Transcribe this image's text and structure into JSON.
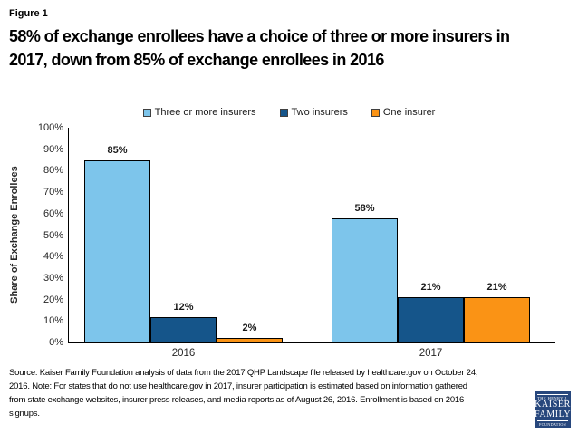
{
  "figure_label": "Figure 1",
  "title": "58% of exchange enrollees have a choice of three or more insurers in\n2017, down from 85% of exchange enrollees in 2016",
  "source_note": "Source: Kaiser Family Foundation analysis of data from the 2017 QHP Landscape file released by healthcare.gov on October 24,\n2016. Note: For states that do not use healthcare.gov in 2017, insurer participation is estimated based on information gathered\nfrom state exchange websites, insurer press releases, and media reports as of August 26, 2016. Enrollment is based on 2016\nsignups.",
  "logo": {
    "line1": "THE HENRY J.",
    "line2": "KAISER",
    "line3": "FAMILY",
    "line4": "FOUNDATION",
    "bg_color": "#27477D"
  },
  "chart_data": {
    "type": "bar",
    "title": "",
    "categories": [
      "2016",
      "2017"
    ],
    "series": [
      {
        "name": "Three or more insurers",
        "color": "#7DC5EB",
        "values": [
          85,
          58
        ]
      },
      {
        "name": "Two insurers",
        "color": "#15558A",
        "values": [
          12,
          21
        ]
      },
      {
        "name": "One insurer",
        "color": "#FA9315",
        "values": [
          2,
          21
        ]
      }
    ],
    "xlabel": "",
    "ylabel": "Share of Exchange Enrollees",
    "ylim": [
      0,
      100
    ],
    "y_tick_interval": 10,
    "y_tick_suffix": "%",
    "data_label_suffix": "%",
    "legend_position": "top",
    "grid": "off"
  }
}
